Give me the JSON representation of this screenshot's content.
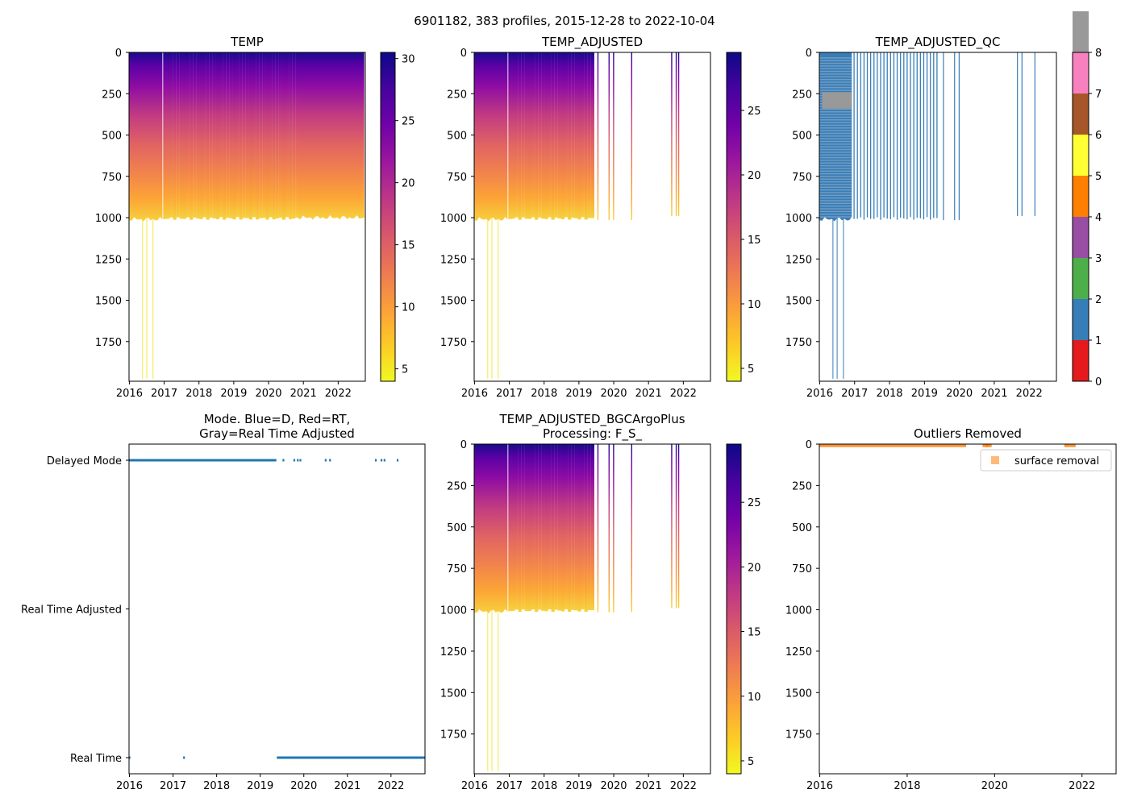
{
  "figure": {
    "suptitle": "6901182, 383 profiles, 2015-12-28 to 2022-10-04"
  },
  "colors": {
    "series_blue": "#1f77b4",
    "outlier_orange": "#ff7f0e",
    "plasma": [
      "#f0f921",
      "#fdca26",
      "#fb9f3a",
      "#ed7953",
      "#d8576b",
      "#bd3786",
      "#9c179e",
      "#7201a8",
      "#46039f",
      "#0d0887"
    ],
    "qc_classes": [
      "#e41a1c",
      "#377eb8",
      "#4daf4a",
      "#984ea3",
      "#ff7f00",
      "#ffff33",
      "#a65628",
      "#f781bf",
      "#999999"
    ]
  },
  "chart_data": [
    {
      "id": "temp",
      "type": "heatmap",
      "title": "TEMP",
      "xlim": [
        2015.99,
        2022.78
      ],
      "ylim": [
        1990,
        0
      ],
      "xticks": [
        2016,
        2017,
        2018,
        2019,
        2020,
        2021,
        2022
      ],
      "xtick_labels": [
        "2016",
        "2017",
        "2018",
        "2019",
        "2020",
        "2021",
        "2022"
      ],
      "yticks": [
        0,
        250,
        500,
        750,
        1000,
        1250,
        1500,
        1750
      ],
      "ytick_labels": [
        "0",
        "250",
        "500",
        "750",
        "1000",
        "1250",
        "1500",
        "1750"
      ],
      "colorbar": {
        "cmap": "plasma",
        "vmin": 4,
        "vmax": 30.5,
        "ticks": [
          5,
          10,
          15,
          20,
          25,
          30
        ],
        "tick_labels": [
          "5",
          "10",
          "15",
          "20",
          "25",
          "30"
        ]
      },
      "profile_segments": [
        {
          "start": 2016.0,
          "end": 2016.95,
          "max_depth": 1010,
          "density": "continuous"
        },
        {
          "start": 2016.95,
          "end": 2020.85,
          "max_depth": 1005,
          "density": "sparse"
        },
        {
          "start": 2020.85,
          "end": 2022.75,
          "max_depth": 1000,
          "density": "continuous"
        }
      ],
      "deep_profiles": [
        2016.38,
        2016.5,
        2016.68
      ],
      "deep_profile_depth": 1975
    },
    {
      "id": "temp_adjusted",
      "type": "heatmap",
      "title": "TEMP_ADJUSTED",
      "xlim": [
        2015.99,
        2022.78
      ],
      "ylim": [
        1990,
        0
      ],
      "xticks": [
        2016,
        2017,
        2018,
        2019,
        2020,
        2021,
        2022
      ],
      "xtick_labels": [
        "2016",
        "2017",
        "2018",
        "2019",
        "2020",
        "2021",
        "2022"
      ],
      "yticks": [
        0,
        250,
        500,
        750,
        1000,
        1250,
        1500,
        1750
      ],
      "ytick_labels": [
        "0",
        "250",
        "500",
        "750",
        "1000",
        "1250",
        "1500",
        "1750"
      ],
      "colorbar": {
        "cmap": "plasma",
        "vmin": 4,
        "vmax": 29.5,
        "ticks": [
          5,
          10,
          15,
          20,
          25
        ],
        "tick_labels": [
          "5",
          "10",
          "15",
          "20",
          "25"
        ]
      },
      "profile_segments": [
        {
          "start": 2016.0,
          "end": 2016.95,
          "max_depth": 1010,
          "density": "continuous"
        },
        {
          "start": 2016.95,
          "end": 2019.35,
          "max_depth": 1005,
          "density": "sparse"
        }
      ],
      "isolated_profiles": [
        2019.53,
        2019.85,
        2019.98,
        2020.5,
        2021.65,
        2021.78,
        2021.85
      ],
      "deep_profiles": [
        2016.38,
        2016.5,
        2016.68
      ],
      "deep_profile_depth": 1975
    },
    {
      "id": "temp_adjusted_qc",
      "type": "heatmap",
      "title": "TEMP_ADJUSTED_QC",
      "xlim": [
        2015.99,
        2022.78
      ],
      "ylim": [
        1990,
        0
      ],
      "xticks": [
        2016,
        2017,
        2018,
        2019,
        2020,
        2021,
        2022
      ],
      "xtick_labels": [
        "2016",
        "2017",
        "2018",
        "2019",
        "2020",
        "2021",
        "2022"
      ],
      "yticks": [
        0,
        250,
        500,
        750,
        1000,
        1250,
        1500,
        1750
      ],
      "ytick_labels": [
        "0",
        "250",
        "500",
        "750",
        "1000",
        "1250",
        "1500",
        "1750"
      ],
      "colorbar": {
        "cmap": "qc_classes",
        "vmin": 0,
        "vmax": 8,
        "ticks": [
          0,
          1,
          2,
          3,
          4,
          5,
          6,
          7,
          8
        ],
        "tick_labels": [
          "0",
          "1",
          "2",
          "3",
          "4",
          "5",
          "6",
          "7",
          "8"
        ]
      },
      "qc_block": {
        "x0": 2016.0,
        "x1": 2016.92,
        "depth0": 0,
        "depth1": 1010,
        "value": 1
      },
      "qc_gray_block": {
        "x0": 2016.0,
        "x1": 2016.92,
        "depth0": 240,
        "depth1": 340,
        "value": 8
      },
      "profile_segments": [
        {
          "start": 2016.95,
          "end": 2019.35,
          "max_depth": 1005,
          "density": "sparse"
        }
      ],
      "isolated_profiles": [
        2019.53,
        2019.85,
        2019.98,
        2021.65,
        2021.78,
        2022.15
      ],
      "deep_profiles": [
        2016.38,
        2016.5,
        2016.68
      ],
      "deep_profile_depth": 1975
    },
    {
      "id": "mode",
      "type": "scatter",
      "title": "Mode. Blue=D, Red=RT,",
      "title_line2": "Gray=Real Time Adjusted",
      "xlim": [
        2015.99,
        2022.78
      ],
      "ylim": [
        0,
        2
      ],
      "xticks": [
        2016,
        2017,
        2018,
        2019,
        2020,
        2021,
        2022
      ],
      "xtick_labels": [
        "2016",
        "2017",
        "2018",
        "2019",
        "2020",
        "2021",
        "2022"
      ],
      "yticks": [
        0,
        1,
        2
      ],
      "ytick_labels": [
        "Real Time",
        "Real Time Adjusted",
        "Delayed Mode"
      ],
      "series": [
        {
          "name": "Delayed Mode",
          "y": 2,
          "ranges": [
            [
              2016.0,
              2019.35
            ]
          ],
          "points": [
            2019.53,
            2019.78,
            2019.86,
            2019.92,
            2020.5,
            2020.6,
            2021.65,
            2021.78,
            2021.85,
            2022.15
          ]
        },
        {
          "name": "Real Time",
          "y": 0,
          "ranges": [
            [
              2019.4,
              2022.78
            ]
          ],
          "points": [
            2016.0,
            2017.25
          ]
        }
      ]
    },
    {
      "id": "temp_bgc",
      "type": "heatmap",
      "title": "TEMP_ADJUSTED_BGCArgoPlus",
      "title_line2": "Processing: F_S_",
      "xlim": [
        2015.99,
        2022.78
      ],
      "ylim": [
        1990,
        0
      ],
      "xticks": [
        2016,
        2017,
        2018,
        2019,
        2020,
        2021,
        2022
      ],
      "xtick_labels": [
        "2016",
        "2017",
        "2018",
        "2019",
        "2020",
        "2021",
        "2022"
      ],
      "yticks": [
        0,
        250,
        500,
        750,
        1000,
        1250,
        1500,
        1750
      ],
      "ytick_labels": [
        "0",
        "250",
        "500",
        "750",
        "1000",
        "1250",
        "1500",
        "1750"
      ],
      "colorbar": {
        "cmap": "plasma",
        "vmin": 4,
        "vmax": 29.5,
        "ticks": [
          5,
          10,
          15,
          20,
          25
        ],
        "tick_labels": [
          "5",
          "10",
          "15",
          "20",
          "25"
        ]
      },
      "profile_segments": [
        {
          "start": 2016.0,
          "end": 2016.95,
          "max_depth": 1010,
          "density": "continuous"
        },
        {
          "start": 2016.95,
          "end": 2019.35,
          "max_depth": 1005,
          "density": "sparse"
        }
      ],
      "isolated_profiles": [
        2019.53,
        2019.85,
        2019.98,
        2020.5,
        2021.65,
        2021.78,
        2021.85
      ],
      "deep_profiles": [
        2016.38,
        2016.5,
        2016.68
      ],
      "deep_profile_depth": 1975
    },
    {
      "id": "outliers",
      "type": "scatter",
      "title": "Outliers Removed",
      "xlim": [
        2015.99,
        2022.78
      ],
      "ylim": [
        1990,
        0
      ],
      "xticks": [
        2016,
        2018,
        2020,
        2022
      ],
      "xtick_labels": [
        "2016",
        "2018",
        "2020",
        "2022"
      ],
      "yticks": [
        0,
        250,
        500,
        750,
        1000,
        1250,
        1500,
        1750
      ],
      "ytick_labels": [
        "0",
        "250",
        "500",
        "750",
        "1000",
        "1250",
        "1500",
        "1750"
      ],
      "legend": {
        "label": "surface removal",
        "position": "top-right"
      },
      "series": [
        {
          "name": "surface removal",
          "ranges": [
            [
              2016.0,
              2019.35
            ]
          ],
          "points": [
            2019.78,
            2019.86,
            2021.65,
            2021.78
          ],
          "depth_range": [
            0,
            18
          ]
        }
      ]
    }
  ]
}
